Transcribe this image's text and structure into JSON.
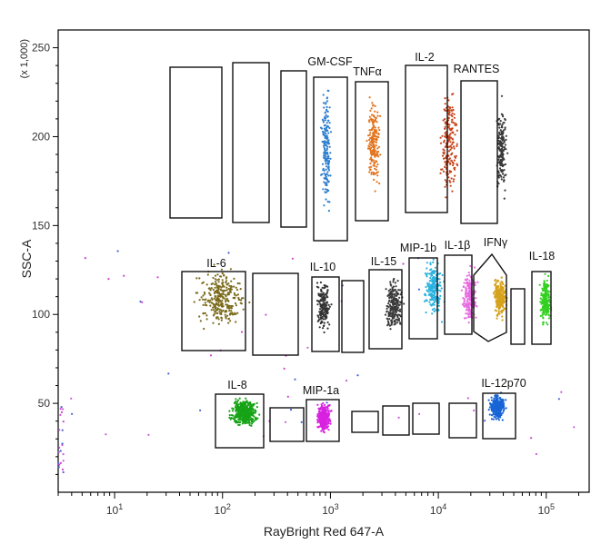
{
  "chart_data": {
    "type": "scatter",
    "xlabel": "RayBright Red 647-A",
    "ylabel": "SSC-A",
    "y_multiplier": "(x 1,000)",
    "x_scale": "log",
    "xlim": [
      3,
      250000
    ],
    "ylim": [
      0,
      260
    ],
    "x_major_ticks": [
      {
        "value": 10,
        "base": "10",
        "exp": "1"
      },
      {
        "value": 100,
        "base": "10",
        "exp": "2"
      },
      {
        "value": 1000,
        "base": "10",
        "exp": "3"
      },
      {
        "value": 10000,
        "base": "10",
        "exp": "4"
      },
      {
        "value": 100000,
        "base": "10",
        "exp": "5"
      }
    ],
    "y_ticks": [
      50,
      100,
      150,
      200,
      250
    ],
    "grid": false,
    "populations": [
      {
        "label": "GM-CSF",
        "color": "#2f7fd0",
        "x_range": [
          800,
          1050
        ],
        "y_range": [
          150,
          235
        ],
        "n": 180
      },
      {
        "label": "TNFα",
        "color": "#e3741f",
        "x_range": [
          2100,
          3000
        ],
        "y_range": [
          162,
          228
        ],
        "n": 190
      },
      {
        "label": "IL-2",
        "color": "#c8451c",
        "x_range": [
          10000,
          16000
        ],
        "y_range": [
          155,
          240
        ],
        "n": 200
      },
      {
        "label": "RANTES",
        "color": "#3a3a3a",
        "x_range": [
          33000,
          45000
        ],
        "y_range": [
          160,
          225
        ],
        "n": 170
      },
      {
        "label": "IL-6",
        "color": "#7a6a1a",
        "x_range": [
          50,
          190
        ],
        "y_range": [
          88,
          130
        ],
        "n": 300
      },
      {
        "label": "IL-10",
        "color": "#333333",
        "x_range": [
          700,
          1050
        ],
        "y_range": [
          86,
          125
        ],
        "n": 180
      },
      {
        "label": "IL-15",
        "color": "#3a3a3a",
        "x_range": [
          3000,
          5000
        ],
        "y_range": [
          86,
          125
        ],
        "n": 230
      },
      {
        "label": "MIP-1b",
        "color": "#2ab2df",
        "x_range": [
          7000,
          11500
        ],
        "y_range": [
          95,
          135
        ],
        "n": 220
      },
      {
        "label": "IL-1β",
        "color": "#e66be0",
        "x_range": [
          16000,
          24000
        ],
        "y_range": [
          90,
          130
        ],
        "n": 220
      },
      {
        "label": "IFNγ",
        "color": "#d6a21c",
        "x_range": [
          31000,
          45000
        ],
        "y_range": [
          95,
          125
        ],
        "n": 230
      },
      {
        "label": "IL-18",
        "color": "#32d020",
        "x_range": [
          85000,
          115000
        ],
        "y_range": [
          90,
          125
        ],
        "n": 200
      },
      {
        "label": "IL-8",
        "color": "#16a316",
        "x_range": [
          110,
          230
        ],
        "y_range": [
          35,
          55
        ],
        "n": 420
      },
      {
        "label": "MIP-1a",
        "color": "#d822e0",
        "x_range": [
          720,
          1050
        ],
        "y_range": [
          32,
          52
        ],
        "n": 320
      },
      {
        "label": "IL-12p70",
        "color": "#1864d6",
        "x_range": [
          28000,
          45000
        ],
        "y_range": [
          38,
          58
        ],
        "n": 250
      }
    ],
    "background_events": {
      "colors": [
        "#c85ad8",
        "#4a60d0",
        "#d040d0"
      ],
      "n": 70
    }
  }
}
